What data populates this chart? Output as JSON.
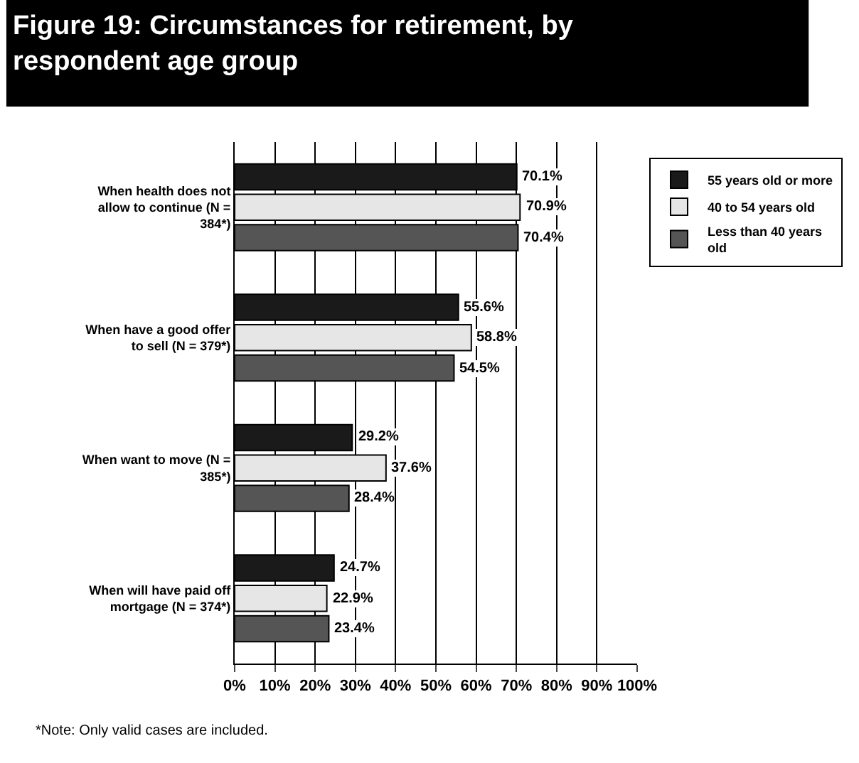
{
  "chart_data": {
    "type": "bar",
    "orientation": "horizontal",
    "title": "Figure 19: Circumstances for retirement, by\nrespondent age group",
    "categories": [
      "When health does not\nallow to continue (N =\n384*)",
      "When have a good offer\nto sell (N = 379*)",
      "When want to move (N =\n385*)",
      "When will have paid off\nmortgage (N = 374*)"
    ],
    "series": [
      {
        "name": "55 years old or more",
        "color": "#1a1a1a",
        "values": [
          70.1,
          55.6,
          29.2,
          24.7
        ],
        "value_labels": [
          "70.1%",
          "55.6%",
          "29.2%",
          "24.7%"
        ]
      },
      {
        "name": "40 to 54 years old",
        "color": "#e6e6e6",
        "values": [
          70.9,
          58.8,
          37.6,
          22.9
        ],
        "value_labels": [
          "70.9%",
          "58.8%",
          "37.6%",
          "22.9%"
        ]
      },
      {
        "name": "Less than 40 years\nold",
        "color": "#555555",
        "values": [
          70.4,
          54.5,
          28.4,
          23.4
        ],
        "value_labels": [
          "70.4%",
          "54.5%",
          "28.4%",
          "23.4%"
        ]
      }
    ],
    "xlim": [
      0,
      100
    ],
    "xticks": [
      {
        "value": 0,
        "label": "0%"
      },
      {
        "value": 10,
        "label": "10%"
      },
      {
        "value": 20,
        "label": "20%"
      },
      {
        "value": 30,
        "label": "30%"
      },
      {
        "value": 40,
        "label": "40%"
      },
      {
        "value": 50,
        "label": "50%"
      },
      {
        "value": 60,
        "label": "60%"
      },
      {
        "value": 70,
        "label": "70%"
      },
      {
        "value": 80,
        "label": "80%"
      },
      {
        "value": 90,
        "label": "90%"
      },
      {
        "value": 100,
        "label": "100%"
      }
    ],
    "grid": "x",
    "legend": "right",
    "annotations": [
      "*Note: Only valid cases are included."
    ]
  }
}
